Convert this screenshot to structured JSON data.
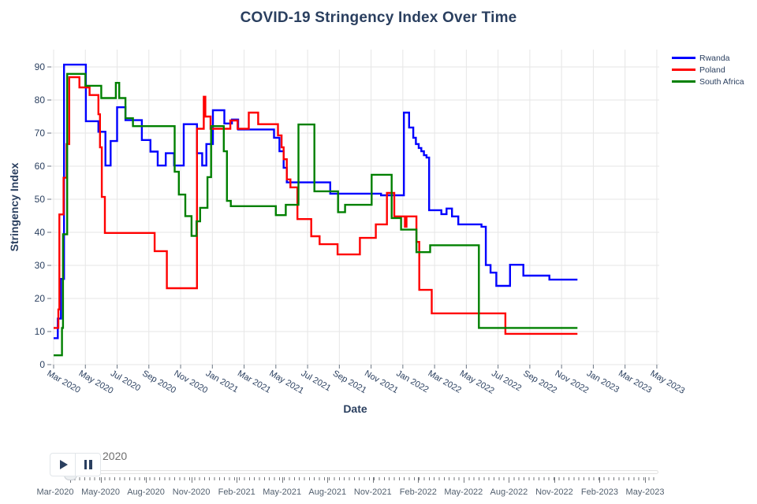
{
  "title": "COVID-19 Stringency Index Over Time",
  "y_axis": {
    "label": "Stringency Index",
    "ticks": [
      0,
      10,
      20,
      30,
      40,
      50,
      60,
      70,
      80,
      90
    ]
  },
  "x_axis": {
    "label": "Date",
    "ticks": [
      "Mar 2020",
      "May 2020",
      "Jul 2020",
      "Sep 2020",
      "Nov 2020",
      "Jan 2021",
      "Mar 2021",
      "May 2021",
      "Jul 2021",
      "Sep 2021",
      "Nov 2021",
      "Jan 2022",
      "Mar 2022",
      "May 2022",
      "Jul 2022",
      "Sep 2022",
      "Nov 2022",
      "Jan 2023",
      "Mar 2023",
      "May 2023"
    ]
  },
  "legend": {
    "position": "top-right",
    "items": [
      {
        "label": "Rwanda",
        "color": "#0000ff"
      },
      {
        "label": "Poland",
        "color": "#ff0000"
      },
      {
        "label": "South Africa",
        "color": "#008000"
      }
    ]
  },
  "slider": {
    "current_value": "2020",
    "play_icon": "play",
    "pause_icon": "pause",
    "tick_labels": [
      "Mar-2020",
      "May-2020",
      "Aug-2020",
      "Nov-2020",
      "Feb-2021",
      "May-2021",
      "Aug-2021",
      "Nov-2021",
      "Feb-2022",
      "May-2022",
      "Aug-2022",
      "Nov-2022",
      "Feb-2023",
      "May-2023"
    ]
  },
  "colors": {
    "text": "#2a3f5f",
    "grid": "#e6e6e6",
    "tick": "#6b7683"
  },
  "chart_data": {
    "type": "line",
    "step_shape": "hv",
    "title": "COVID-19 Stringency Index Over Time",
    "xlabel": "Date",
    "ylabel": "Stringency Index",
    "ylim": [
      0,
      95
    ],
    "grid": true,
    "legend_position": "top-right",
    "x_tick_labels": [
      "Mar 2020",
      "May 2020",
      "Jul 2020",
      "Sep 2020",
      "Nov 2020",
      "Jan 2021",
      "Mar 2021",
      "May 2021",
      "Jul 2021",
      "Sep 2021",
      "Nov 2021",
      "Jan 2022",
      "Mar 2022",
      "May 2022",
      "Jul 2022",
      "Sep 2022",
      "Nov 2022",
      "Jan 2023",
      "Mar 2023",
      "May 2023"
    ],
    "series": [
      {
        "name": "Rwanda",
        "color": "#0000ff",
        "points": [
          [
            "2020-03-01",
            8
          ],
          [
            "2020-03-09",
            13.9
          ],
          [
            "2020-03-15",
            25.9
          ],
          [
            "2020-03-21",
            90.7
          ],
          [
            "2020-05-02",
            73.6
          ],
          [
            "2020-05-26",
            70.4
          ],
          [
            "2020-06-09",
            60.2
          ],
          [
            "2020-06-19",
            67.6
          ],
          [
            "2020-07-01",
            77.8
          ],
          [
            "2020-07-17",
            73.9
          ],
          [
            "2020-08-18",
            67.9
          ],
          [
            "2020-09-04",
            64.4
          ],
          [
            "2020-09-18",
            60.2
          ],
          [
            "2020-10-03",
            63.9
          ],
          [
            "2020-10-19",
            60.2
          ],
          [
            "2020-11-07",
            72.7
          ],
          [
            "2020-12-02",
            63.9
          ],
          [
            "2020-12-12",
            60.2
          ],
          [
            "2020-12-20",
            66.7
          ],
          [
            "2021-01-02",
            76.9
          ],
          [
            "2021-01-24",
            72.9
          ],
          [
            "2021-02-08",
            74.1
          ],
          [
            "2021-02-20",
            71.1
          ],
          [
            "2021-04-28",
            68.6
          ],
          [
            "2021-05-08",
            64.5
          ],
          [
            "2021-05-16",
            59.5
          ],
          [
            "2021-05-22",
            55.1
          ],
          [
            "2021-08-14",
            51.7
          ],
          [
            "2021-11-20",
            51.2
          ],
          [
            "2022-01-03",
            76.2
          ],
          [
            "2022-01-13",
            71.7
          ],
          [
            "2022-01-21",
            68.6
          ],
          [
            "2022-01-26",
            66.7
          ],
          [
            "2022-02-01",
            65.5
          ],
          [
            "2022-02-06",
            64.5
          ],
          [
            "2022-02-11",
            63.3
          ],
          [
            "2022-02-16",
            62.6
          ],
          [
            "2022-02-21",
            46.7
          ],
          [
            "2022-03-14",
            45.5
          ],
          [
            "2022-03-24",
            47.2
          ],
          [
            "2022-04-04",
            44.8
          ],
          [
            "2022-04-16",
            42.4
          ],
          [
            "2022-05-30",
            41.7
          ],
          [
            "2022-06-08",
            30.1
          ],
          [
            "2022-06-17",
            27.8
          ],
          [
            "2022-06-28",
            23.8
          ],
          [
            "2022-07-24",
            30.2
          ],
          [
            "2022-08-19",
            26.9
          ],
          [
            "2022-10-08",
            25.7
          ],
          [
            "2022-12-01",
            25.7
          ]
        ]
      },
      {
        "name": "Poland",
        "color": "#ff0000",
        "points": [
          [
            "2020-03-01",
            11.1
          ],
          [
            "2020-03-10",
            16.7
          ],
          [
            "2020-03-12",
            45.4
          ],
          [
            "2020-03-20",
            56.5
          ],
          [
            "2020-03-26",
            66.7
          ],
          [
            "2020-03-31",
            86.9
          ],
          [
            "2020-04-20",
            83.8
          ],
          [
            "2020-05-09",
            81.5
          ],
          [
            "2020-05-26",
            75.7
          ],
          [
            "2020-05-29",
            65.7
          ],
          [
            "2020-06-02",
            50.7
          ],
          [
            "2020-06-08",
            39.8
          ],
          [
            "2020-09-12",
            34.3
          ],
          [
            "2020-10-05",
            23.1
          ],
          [
            "2020-12-02",
            71.3
          ],
          [
            "2020-12-15",
            81.0
          ],
          [
            "2020-12-18",
            75.0
          ],
          [
            "2020-12-28",
            71.3
          ],
          [
            "2021-02-05",
            73.8
          ],
          [
            "2021-02-19",
            71.3
          ],
          [
            "2021-03-10",
            76.2
          ],
          [
            "2021-03-28",
            72.7
          ],
          [
            "2021-05-05",
            69.3
          ],
          [
            "2021-05-12",
            65.7
          ],
          [
            "2021-05-16",
            62.1
          ],
          [
            "2021-05-22",
            56.0
          ],
          [
            "2021-05-29",
            53.6
          ],
          [
            "2021-06-12",
            44.0
          ],
          [
            "2021-07-08",
            38.8
          ],
          [
            "2021-07-24",
            36.4
          ],
          [
            "2021-08-28",
            33.3
          ],
          [
            "2021-10-10",
            38.3
          ],
          [
            "2021-11-10",
            42.4
          ],
          [
            "2021-12-01",
            51.9
          ],
          [
            "2021-12-15",
            44.8
          ],
          [
            "2022-01-05",
            41.7
          ],
          [
            "2022-01-08",
            44.8
          ],
          [
            "2022-01-27",
            37.1
          ],
          [
            "2022-02-02",
            22.6
          ],
          [
            "2022-02-26",
            15.5
          ],
          [
            "2022-07-15",
            9.3
          ],
          [
            "2022-12-01",
            9.3
          ]
        ]
      },
      {
        "name": "South Africa",
        "color": "#008000",
        "points": [
          [
            "2020-03-01",
            2.8
          ],
          [
            "2020-03-17",
            11.1
          ],
          [
            "2020-03-19",
            39.4
          ],
          [
            "2020-03-27",
            87.9
          ],
          [
            "2020-05-01",
            84.3
          ],
          [
            "2020-06-01",
            80.6
          ],
          [
            "2020-06-29",
            85.2
          ],
          [
            "2020-07-05",
            80.6
          ],
          [
            "2020-07-17",
            74.5
          ],
          [
            "2020-08-01",
            72.1
          ],
          [
            "2020-10-20",
            58.3
          ],
          [
            "2020-10-28",
            51.4
          ],
          [
            "2020-11-10",
            44.9
          ],
          [
            "2020-11-22",
            38.9
          ],
          [
            "2020-12-01",
            43.3
          ],
          [
            "2020-12-08",
            47.4
          ],
          [
            "2020-12-22",
            56.7
          ],
          [
            "2020-12-29",
            72.1
          ],
          [
            "2021-01-23",
            64.5
          ],
          [
            "2021-01-29",
            49.5
          ],
          [
            "2021-02-06",
            47.9
          ],
          [
            "2021-05-01",
            45.2
          ],
          [
            "2021-05-20",
            48.3
          ],
          [
            "2021-06-14",
            72.6
          ],
          [
            "2021-07-14",
            52.4
          ],
          [
            "2021-08-29",
            46.1
          ],
          [
            "2021-09-12",
            48.3
          ],
          [
            "2021-11-02",
            57.4
          ],
          [
            "2021-12-10",
            44.3
          ],
          [
            "2021-12-28",
            40.8
          ],
          [
            "2022-01-27",
            34.0
          ],
          [
            "2022-02-23",
            36.1
          ],
          [
            "2022-05-25",
            11.1
          ],
          [
            "2022-12-01",
            11.1
          ]
        ]
      }
    ]
  }
}
